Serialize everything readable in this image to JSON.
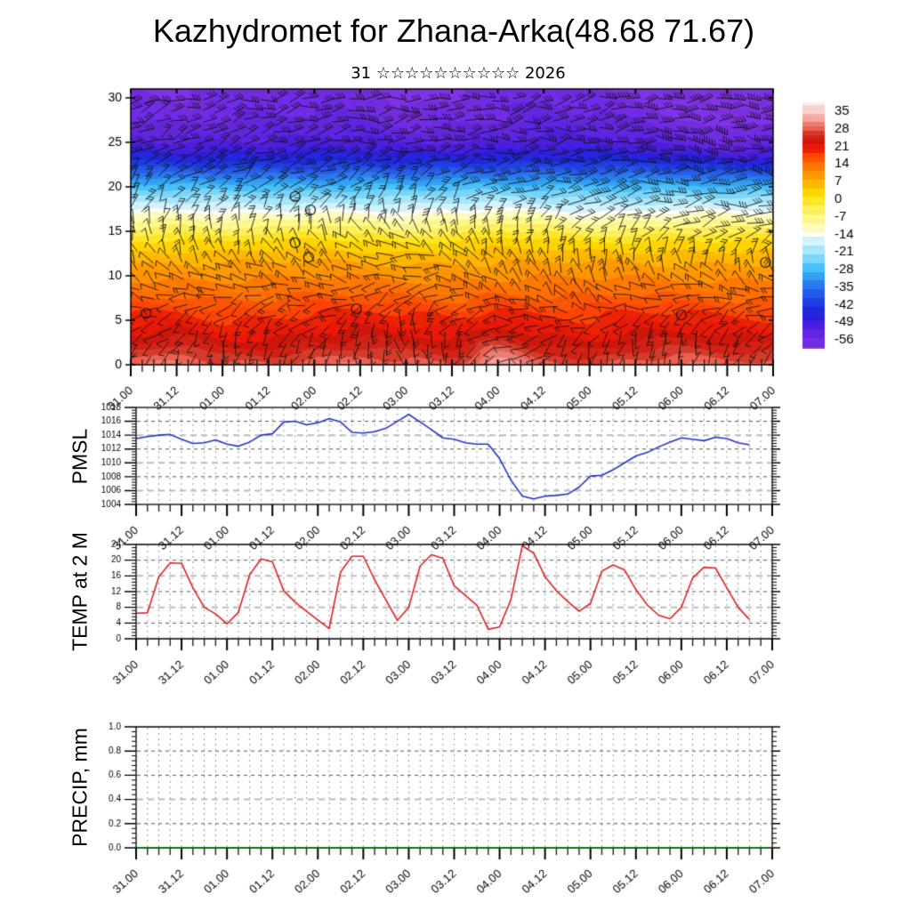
{
  "title": "Kazhydromet for Zhana-Arka(48.68 71.67)",
  "subtitle": {
    "day": "31",
    "stars": "☆☆☆☆☆☆☆☆☆☆",
    "year": "2026",
    "text": "31 ☆☆☆☆☆☆☆☆☆☆ 2026"
  },
  "time_axis": {
    "labels": [
      "31.00",
      "31.12",
      "01.00",
      "01.12",
      "02.00",
      "02.12",
      "03.00",
      "03.12",
      "04.00",
      "04.12",
      "05.00",
      "05.12",
      "06.00",
      "06.12",
      "07.00"
    ],
    "total_hours": 168,
    "label_every_hours": 12,
    "tick_every_hours": 3
  },
  "chart_data": [
    {
      "type": "heatmap",
      "name": "temperature-wind cross-section",
      "ylim": [
        0,
        31
      ],
      "yticks": [
        0,
        5,
        10,
        15,
        20,
        25,
        30
      ],
      "colorbar_ticks": [
        35,
        28,
        21,
        14,
        7,
        0,
        -7,
        -14,
        -21,
        -28,
        -35,
        -42,
        -49,
        -56
      ],
      "palette": [
        [
          -60,
          "#7c30dc"
        ],
        [
          -54,
          "#6426da"
        ],
        [
          -50,
          "#4a1dd8"
        ],
        [
          -47,
          "#2e1ed6"
        ],
        [
          -44,
          "#1c27d6"
        ],
        [
          -40,
          "#2143de"
        ],
        [
          -36,
          "#2764e4"
        ],
        [
          -32,
          "#2b8cea"
        ],
        [
          -28,
          "#3cb4f0"
        ],
        [
          -24,
          "#6fcdf4"
        ],
        [
          -20,
          "#a4e0f8"
        ],
        [
          -16,
          "#cfeefa"
        ],
        [
          -14.5,
          "#e9f7f9"
        ],
        [
          -13.5,
          "#fbfcd9"
        ],
        [
          -11,
          "#fdf8b2"
        ],
        [
          -7,
          "#fef07e"
        ],
        [
          -2,
          "#fee33b"
        ],
        [
          2,
          "#fed501"
        ],
        [
          6,
          "#feb601"
        ],
        [
          10,
          "#fe9101"
        ],
        [
          14,
          "#fd6b02"
        ],
        [
          17,
          "#fa4a03"
        ],
        [
          20,
          "#e81706"
        ],
        [
          24,
          "#c4170c"
        ],
        [
          27,
          "#d94434"
        ],
        [
          30,
          "#e98277"
        ],
        [
          34,
          "#f3b9b4"
        ],
        [
          38,
          "#f9dedb"
        ]
      ],
      "cross_section": {
        "z_levels": [
          0,
          2,
          4,
          6,
          8,
          10,
          12,
          14,
          15,
          16,
          17,
          18,
          19,
          20,
          21,
          22,
          23,
          24,
          25,
          26,
          28,
          31
        ],
        "base_profile": [
          26,
          22.5,
          19.5,
          17,
          14,
          11,
          7,
          1,
          -4,
          -8.5,
          -13,
          -17.5,
          -22,
          -27,
          -32.5,
          -38,
          -43.5,
          -47.5,
          -50.5,
          -52.5,
          -55,
          -57.5
        ],
        "column_hours_step": 12,
        "surface_anomaly": [
          2,
          4,
          1,
          2,
          3,
          4,
          2,
          1,
          6,
          3,
          1,
          3,
          3,
          2,
          2
        ],
        "mid_anomaly": [
          0,
          1,
          -1,
          0,
          2,
          1,
          -1,
          0,
          2,
          1,
          -1,
          0,
          1,
          0,
          0
        ],
        "upper_anomaly": [
          0,
          -1,
          0,
          0,
          0,
          0,
          -2,
          -1,
          0,
          1,
          0,
          -1,
          -3,
          -5,
          -4
        ]
      },
      "wind": {
        "seed": 987654,
        "z_rows": [
          2,
          8,
          15,
          19,
          24,
          30
        ],
        "t_cols": [
          0,
          24,
          48,
          72,
          96,
          120,
          144,
          168
        ],
        "direction_deg": [
          [
            220,
            260,
            240,
            300,
            200,
            250,
            270,
            230
          ],
          [
            150,
            200,
            170,
            220,
            160,
            130,
            200,
            170
          ],
          [
            100,
            80,
            120,
            140,
            90,
            60,
            40,
            30
          ],
          [
            60,
            50,
            40,
            80,
            30,
            20,
            10,
            0
          ],
          [
            30,
            25,
            15,
            10,
            5,
            0,
            -5,
            -10
          ],
          [
            20,
            15,
            10,
            5,
            10,
            15,
            10,
            5
          ]
        ],
        "barb_count": [
          [
            1,
            1,
            1,
            2,
            1,
            1,
            1,
            1
          ],
          [
            1,
            1,
            2,
            1,
            2,
            1,
            1,
            2
          ],
          [
            1,
            2,
            1,
            2,
            2,
            2,
            2,
            2
          ],
          [
            2,
            2,
            2,
            2,
            2,
            3,
            3,
            3
          ],
          [
            2,
            3,
            3,
            3,
            3,
            3,
            4,
            4
          ],
          [
            3,
            3,
            3,
            3,
            3,
            3,
            4,
            4
          ]
        ]
      },
      "calm_markers": [
        [
          43,
          18.9
        ],
        [
          47,
          17.4
        ],
        [
          43,
          13.7
        ],
        [
          46.5,
          12.1
        ],
        [
          59,
          6.3
        ],
        [
          4,
          5.8
        ],
        [
          144,
          5.6
        ],
        [
          166,
          11.5
        ]
      ]
    },
    {
      "type": "line",
      "name": "PMSL",
      "color": "#2233cc",
      "ylim": [
        1004,
        1018
      ],
      "yticks": [
        1004,
        1006,
        1008,
        1010,
        1012,
        1014,
        1016,
        1018
      ],
      "ytick_decimals": 0,
      "light_gridlines": [
        1014,
        1010,
        1006
      ],
      "start_hour": 0,
      "step_hours": 3,
      "values": [
        1013.5,
        1013.8,
        1014.0,
        1014.1,
        1013.4,
        1012.8,
        1012.9,
        1013.3,
        1012.7,
        1012.4,
        1013.0,
        1014.0,
        1014.2,
        1015.9,
        1016.0,
        1015.5,
        1015.8,
        1016.4,
        1015.9,
        1014.4,
        1014.3,
        1014.5,
        1015.0,
        1016.0,
        1017.0,
        1015.9,
        1014.8,
        1013.6,
        1013.4,
        1012.9,
        1012.7,
        1012.7,
        1010.6,
        1007.5,
        1005.2,
        1004.8,
        1005.2,
        1005.3,
        1005.5,
        1006.5,
        1008.1,
        1008.2,
        1009.0,
        1010.0,
        1011.0,
        1011.5,
        1012.3,
        1013.0,
        1013.6,
        1013.4,
        1013.2,
        1013.7,
        1013.5,
        1012.9,
        1012.6
      ]
    },
    {
      "type": "line",
      "name": "TEMP at 2 M",
      "color": "#e02020",
      "ylim": [
        0,
        24
      ],
      "yticks": [
        0,
        4,
        8,
        12,
        16,
        20,
        24
      ],
      "ytick_decimals": 0,
      "light_gridlines": [
        16,
        8
      ],
      "start_hour": 0,
      "step_hours": 3,
      "values": [
        6.5,
        6.6,
        15.8,
        19.3,
        19.2,
        13.0,
        8.0,
        6.3,
        3.8,
        6.7,
        16.3,
        20.3,
        19.6,
        12.2,
        9.3,
        7.0,
        4.8,
        2.6,
        17.0,
        21.0,
        21.0,
        15.0,
        9.8,
        4.7,
        8.0,
        18.5,
        21.4,
        20.5,
        13.5,
        11.0,
        8.5,
        2.4,
        3.0,
        10.0,
        23.7,
        21.8,
        15.8,
        12.2,
        9.5,
        7.0,
        9.0,
        17.2,
        18.8,
        17.5,
        12.5,
        8.6,
        6.0,
        5.1,
        8.0,
        15.5,
        18.2,
        18.0,
        13.0,
        8.0,
        4.9
      ]
    },
    {
      "type": "line",
      "name": "PRECIP, mm",
      "color": "#008000",
      "ylim": [
        0.0,
        1.0
      ],
      "yticks": [
        0.0,
        0.2,
        0.4,
        0.6,
        0.8,
        1.0
      ],
      "ytick_decimals": 1,
      "light_gridlines": [
        0.4
      ],
      "start_hour": 0,
      "step_hours": 3,
      "constant": 0.0
    }
  ]
}
